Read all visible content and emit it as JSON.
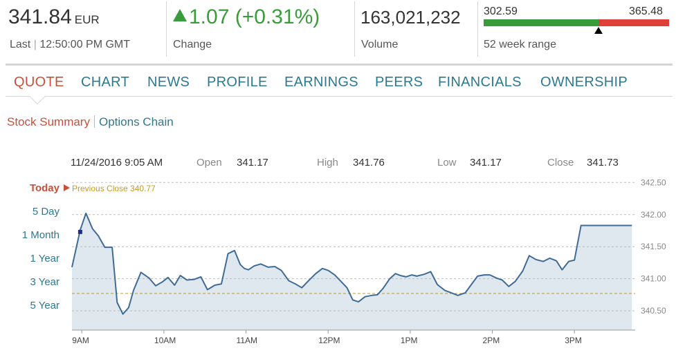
{
  "quote": {
    "price": "341.84",
    "currency": "EUR",
    "last_label": "Last",
    "time": "12:50:00 PM GMT",
    "change": "1.07 (+0.31%)",
    "change_label": "Change",
    "volume": "163,021,232",
    "volume_label": "Volume",
    "range_low": "302.59",
    "range_high": "365.48",
    "range_label": "52 week range",
    "range_position": 0.62,
    "up_color": "#3a9b3a",
    "down_color": "#de3f37"
  },
  "tabs": [
    {
      "label": "QUOTE"
    },
    {
      "label": "CHART"
    },
    {
      "label": "NEWS"
    },
    {
      "label": "PROFILE"
    },
    {
      "label": "EARNINGS"
    },
    {
      "label": "PEERS"
    },
    {
      "label": "FINANCIALS"
    },
    {
      "label": "OWNERSHIP"
    }
  ],
  "subnav": {
    "summary": "Stock Summary",
    "options": "Options Chain"
  },
  "info": {
    "datetime": "11/24/2016 9:05 AM",
    "open_label": "Open",
    "open": "341.17",
    "high_label": "High",
    "high": "341.76",
    "low_label": "Low",
    "low": "341.17",
    "close_label": "Close",
    "close": "341.73"
  },
  "ranges": [
    {
      "label": "Today"
    },
    {
      "label": "5 Day"
    },
    {
      "label": "1 Month"
    },
    {
      "label": "1 Year"
    },
    {
      "label": "3 Year"
    },
    {
      "label": "5 Year"
    }
  ],
  "previous_close_label": "Previous Close 340.77",
  "chart_data": {
    "type": "area",
    "previous_close": 340.77,
    "ylim": [
      340.2,
      342.6
    ],
    "y_ticks": [
      "342.50",
      "342.00",
      "341.50",
      "341.00",
      "340.50"
    ],
    "y_tick_values": [
      342.5,
      342.0,
      341.5,
      341.0,
      340.5
    ],
    "x_ticks": [
      "9AM",
      "10AM",
      "11AM",
      "12PM",
      "1PM",
      "2PM",
      "3PM"
    ],
    "x_tick_hours": [
      9,
      10,
      11,
      12,
      13,
      14,
      15
    ],
    "hover_time_hour": 8.98,
    "series": [
      {
        "x": [
          8.88,
          8.98,
          9.05,
          9.13,
          9.2,
          9.28,
          9.37,
          9.43,
          9.5,
          9.57,
          9.63,
          9.72,
          9.82,
          9.9,
          9.98,
          10.05,
          10.13,
          10.2,
          10.28,
          10.37,
          10.45,
          10.53,
          10.62,
          10.7,
          10.78,
          10.86,
          10.93,
          10.98,
          11.03,
          11.1,
          11.18,
          11.27,
          11.35,
          11.43,
          11.52,
          11.6,
          11.68,
          11.77,
          11.85,
          11.93,
          12.0,
          12.08,
          12.17,
          12.23,
          12.3,
          12.37,
          12.45,
          12.53,
          12.6,
          12.67,
          12.75,
          12.82,
          12.88,
          12.95,
          13.02,
          13.08,
          13.17,
          13.25,
          13.33,
          13.42,
          13.5,
          13.58,
          13.67,
          13.75,
          13.82,
          13.9,
          13.97,
          14.05,
          14.12,
          14.2,
          14.28,
          14.37,
          14.45,
          14.53,
          14.62,
          14.7,
          14.78,
          14.85,
          14.93,
          15.0,
          15.08,
          15.17,
          15.25,
          15.33,
          15.42,
          15.48,
          15.57,
          15.63,
          15.7
        ],
        "y": [
          341.18,
          341.76,
          342.02,
          341.78,
          341.67,
          341.49,
          341.49,
          340.63,
          340.45,
          340.55,
          340.82,
          341.1,
          341.01,
          340.89,
          340.95,
          341.02,
          340.9,
          341.05,
          340.98,
          340.99,
          341.03,
          340.83,
          340.9,
          340.92,
          341.39,
          341.44,
          341.22,
          341.16,
          341.14,
          341.2,
          341.23,
          341.18,
          341.19,
          341.13,
          340.97,
          340.92,
          340.86,
          340.98,
          341.08,
          341.16,
          341.13,
          341.06,
          340.94,
          340.86,
          340.67,
          340.64,
          340.72,
          340.74,
          340.75,
          340.85,
          341.0,
          341.08,
          341.05,
          341.03,
          341.06,
          341.04,
          341.07,
          341.11,
          340.91,
          340.82,
          340.78,
          340.74,
          340.78,
          340.92,
          341.04,
          341.06,
          341.06,
          341.01,
          340.98,
          340.88,
          340.96,
          341.12,
          341.36,
          341.3,
          341.27,
          341.32,
          341.28,
          341.14,
          341.27,
          341.29,
          341.83,
          341.83,
          341.83,
          341.83,
          341.83,
          341.83,
          341.83,
          341.83,
          341.83
        ]
      }
    ],
    "line_color": "#3f6b94",
    "fill_color": "#dfe7ef",
    "prev_close_color": "#c99a1c"
  }
}
